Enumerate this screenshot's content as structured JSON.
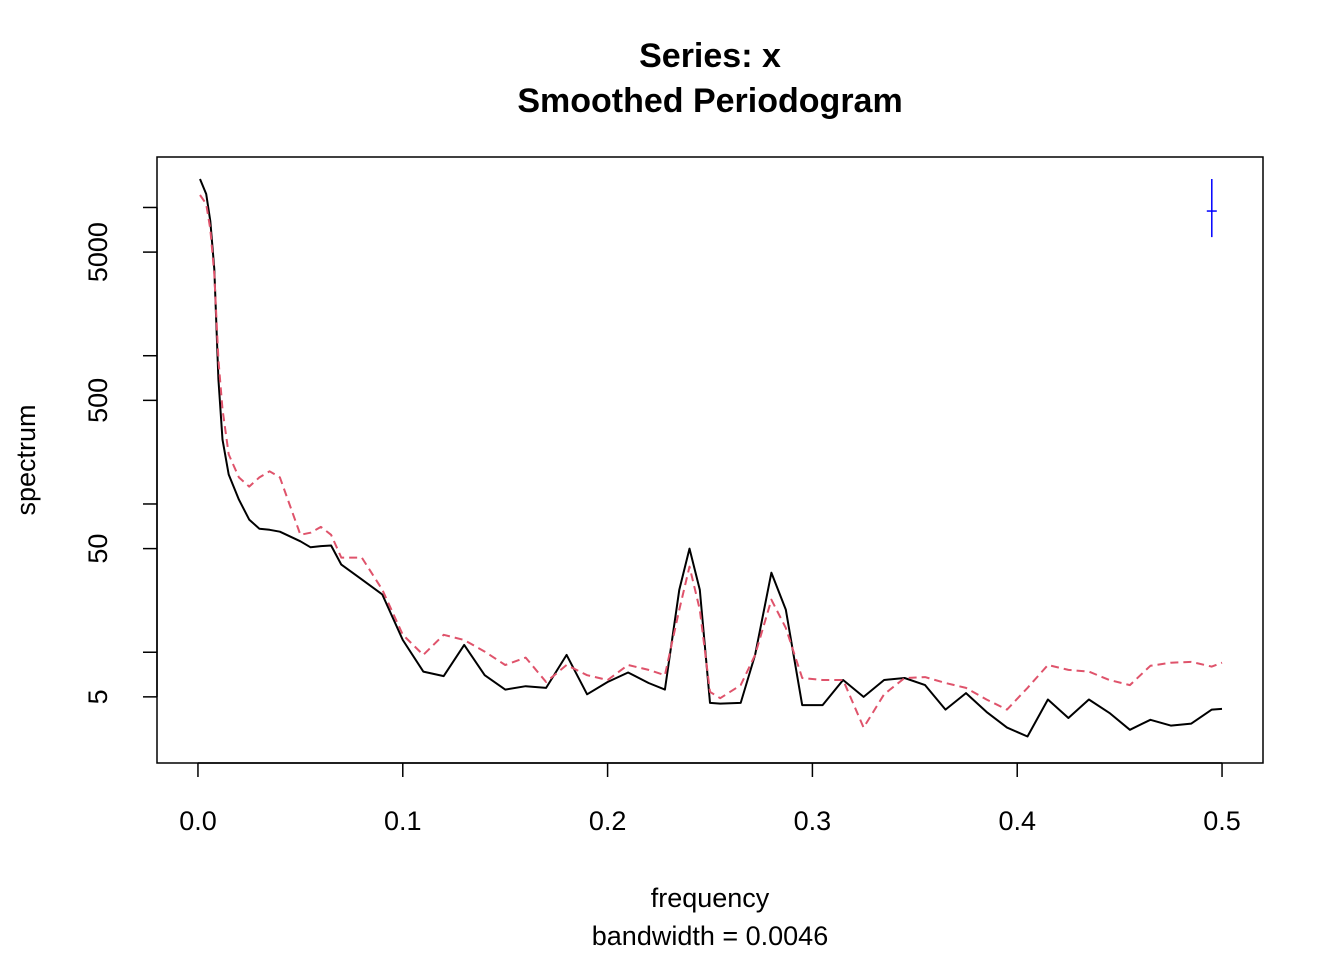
{
  "chart_data": {
    "type": "line",
    "title": "Series: x",
    "subtitle": "Smoothed Periodogram",
    "xlabel": "frequency",
    "xsub": "bandwidth = 0.0046",
    "ylabel": "spectrum",
    "log_y": true,
    "xlim": [
      -0.02,
      0.52
    ],
    "ylim": [
      1.79,
      21900
    ],
    "xticks": [
      {
        "value": 0,
        "label": "0.0"
      },
      0.1,
      0.2,
      0.3,
      0.4,
      0.5
    ],
    "yticks": [
      5,
      50,
      500,
      5000
    ],
    "yminor_ticks": [
      10,
      100,
      1000,
      10000
    ],
    "x": [
      0.001,
      0.004,
      0.006,
      0.008,
      0.01,
      0.012,
      0.015,
      0.02,
      0.025,
      0.03,
      0.035,
      0.04,
      0.05,
      0.055,
      0.06,
      0.065,
      0.07,
      0.08,
      0.09,
      0.1,
      0.11,
      0.12,
      0.13,
      0.14,
      0.15,
      0.16,
      0.17,
      0.18,
      0.19,
      0.2,
      0.21,
      0.22,
      0.228,
      0.235,
      0.24,
      0.245,
      0.25,
      0.255,
      0.265,
      0.272,
      0.28,
      0.287,
      0.295,
      0.305,
      0.315,
      0.325,
      0.335,
      0.345,
      0.355,
      0.365,
      0.375,
      0.385,
      0.395,
      0.405,
      0.415,
      0.425,
      0.435,
      0.445,
      0.455,
      0.465,
      0.475,
      0.485,
      0.495,
      0.5
    ],
    "series": [
      {
        "color": "#000000",
        "dashed": false,
        "values": [
          15560,
          12330,
          8100,
          3840,
          694,
          272,
          158,
          107,
          78.5,
          68,
          67,
          65,
          56,
          51,
          52,
          52.5,
          39,
          31,
          24.5,
          12.1,
          7.4,
          6.9,
          11.2,
          7.0,
          5.6,
          5.9,
          5.75,
          9.6,
          5.2,
          6.3,
          7.3,
          6.2,
          5.6,
          26.4,
          50,
          26.4,
          4.55,
          4.5,
          4.55,
          9.6,
          34.4,
          19.4,
          4.4,
          4.4,
          6.5,
          5,
          6.5,
          6.7,
          6.0,
          4.1,
          5.3,
          3.96,
          3.1,
          2.7,
          4.8,
          3.6,
          4.8,
          3.9,
          3.0,
          3.5,
          3.2,
          3.3,
          4.1,
          4.15
        ]
      },
      {
        "color": "#df536b",
        "dashed": true,
        "values": [
          12130,
          10550,
          7150,
          3550,
          946,
          435,
          216,
          151,
          131,
          151,
          166,
          151,
          62,
          64,
          70,
          62,
          43.5,
          43.5,
          26.4,
          13.1,
          9.6,
          13.1,
          12.1,
          10.1,
          8.2,
          9.2,
          6.3,
          8.2,
          7.0,
          6.5,
          8.2,
          7.6,
          7.0,
          19.4,
          37.8,
          19.4,
          5.4,
          4.9,
          6.0,
          9.6,
          22.6,
          14.6,
          6.7,
          6.5,
          6.5,
          3.1,
          5.2,
          6.7,
          6.8,
          6.2,
          5.75,
          4.8,
          4.1,
          5.75,
          8.2,
          7.6,
          7.4,
          6.5,
          6.0,
          8.1,
          8.5,
          8.6,
          8.0,
          8.5
        ]
      }
    ],
    "ci_bar": {
      "x": 0.495,
      "center": 9460,
      "lower": 6310,
      "upper": 15560,
      "color": "#0000ff"
    }
  }
}
